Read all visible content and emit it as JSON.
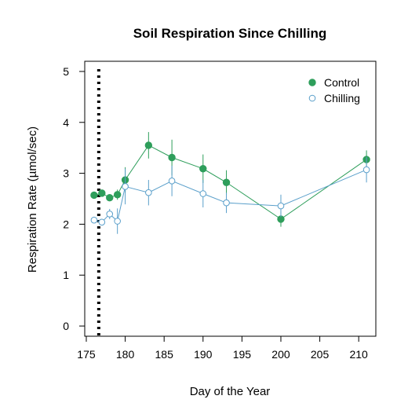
{
  "chart_data": {
    "type": "line",
    "title": "Soil Respiration Since Chilling",
    "xlabel": "Day of the Year",
    "ylabel": "Respiration Rate (µmol/sec)",
    "xlim": [
      174.8,
      212.2
    ],
    "ylim": [
      -0.2,
      5.2
    ],
    "xticks": [
      175,
      180,
      185,
      190,
      195,
      200,
      205,
      210
    ],
    "yticks": [
      0,
      1,
      2,
      3,
      4,
      5
    ],
    "grid": false,
    "legend_position": "top-right",
    "vline": {
      "x": 176.6,
      "style": "dotted",
      "color": "#000000"
    },
    "series": [
      {
        "name": "Control",
        "color": "#2e9e5b",
        "marker": "filled-circle",
        "x": [
          176,
          177,
          178,
          179,
          180,
          183,
          186,
          190,
          193,
          200,
          211
        ],
        "y": [
          2.57,
          2.61,
          2.52,
          2.58,
          2.87,
          3.55,
          3.31,
          3.09,
          2.82,
          2.1,
          3.27
        ],
        "err": [
          0.05,
          0.05,
          0.06,
          0.1,
          0.25,
          0.26,
          0.35,
          0.28,
          0.24,
          0.15,
          0.18
        ]
      },
      {
        "name": "Chilling",
        "color": "#5a9fca",
        "marker": "open-circle",
        "x": [
          176,
          177,
          178,
          179,
          180,
          183,
          186,
          190,
          193,
          200,
          211
        ],
        "y": [
          2.08,
          2.04,
          2.2,
          2.06,
          2.74,
          2.62,
          2.85,
          2.6,
          2.42,
          2.36,
          3.07
        ],
        "err": [
          0.05,
          0.05,
          0.1,
          0.25,
          0.35,
          0.25,
          0.3,
          0.27,
          0.2,
          0.22,
          0.25
        ]
      }
    ]
  }
}
